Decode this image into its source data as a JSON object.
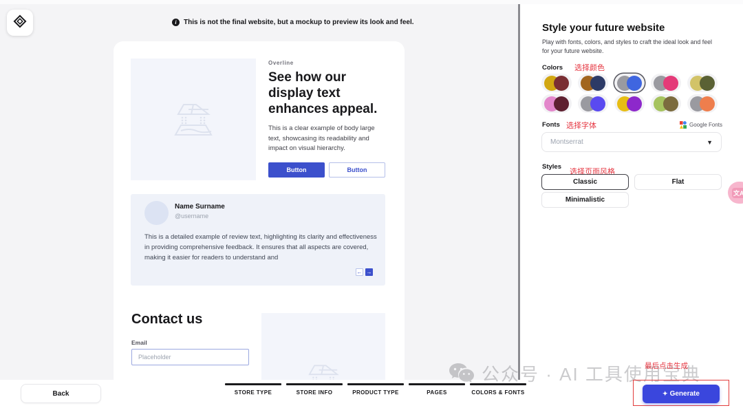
{
  "app": {
    "notice": "This is not the final website, but a mockup to preview its look and feel."
  },
  "preview": {
    "hero": {
      "overline": "Overline",
      "heading": "See how our display text enhances appeal.",
      "body": "This is a clear example of body large text, showcasing its readability and impact on visual hierarchy.",
      "primary_button": "Button",
      "secondary_button": "Button"
    },
    "review": {
      "name": "Name Surname",
      "username": "@username",
      "text": "This is a detailed example of review text, highlighting its clarity and effectiveness in providing comprehensive feedback. It ensures that all aspects are covered, making it easier for readers to understand and",
      "prev_arrow": "←",
      "next_arrow": "→"
    },
    "contact": {
      "heading": "Contact us",
      "email_label": "Email",
      "email_placeholder": "Placeholder"
    }
  },
  "panel": {
    "title": "Style your future website",
    "description": "Play with fonts, colors, and styles to craft the ideal look and feel for your future website.",
    "colors_label": "Colors",
    "colors_annotation": "选择颜色",
    "swatches": [
      {
        "left": "#d2a712",
        "right": "#7a2e33",
        "selected": false
      },
      {
        "left": "#a2661f",
        "right": "#2c3a66",
        "selected": false
      },
      {
        "left": "#9a9aa0",
        "right": "#3f66e0",
        "selected": true
      },
      {
        "left": "#9a9aa0",
        "right": "#e43a78",
        "selected": false
      },
      {
        "left": "#d2c368",
        "right": "#5a6134",
        "selected": false
      },
      {
        "left": "#e387cb",
        "right": "#5e2030",
        "selected": false
      },
      {
        "left": "#9a9aa0",
        "right": "#5a4af0",
        "selected": false
      },
      {
        "left": "#e7bd14",
        "right": "#8d28cb",
        "selected": false
      },
      {
        "left": "#a6c35f",
        "right": "#7b6b3e",
        "selected": false
      },
      {
        "left": "#9a9aa0",
        "right": "#ee7e4d",
        "selected": false
      }
    ],
    "fonts_label": "Fonts",
    "fonts_annotation": "选择字体",
    "google_fonts_label": "Google Fonts",
    "font_value": "Montserrat",
    "styles_label": "Styles",
    "styles_annotation": "选择页面风格",
    "style_options": [
      {
        "label": "Classic",
        "selected": true
      },
      {
        "label": "Flat",
        "selected": false
      },
      {
        "label": "Minimalistic",
        "selected": false
      }
    ],
    "translate_fab": "文A"
  },
  "footer": {
    "back_label": "Back",
    "steps": [
      "STORE TYPE",
      "STORE INFO",
      "PRODUCT TYPE",
      "PAGES",
      "COLORS & FONTS"
    ],
    "generate_label": "Generate",
    "generate_sparkle": "✦",
    "generate_annotation": "最后点击生成"
  },
  "watermark": "公众号 · AI 工具使用宝典",
  "ui_colors": {
    "accent_blue": "#3c50cc",
    "generate_blue": "#3a46dd",
    "annotation_red": "#e53540"
  }
}
